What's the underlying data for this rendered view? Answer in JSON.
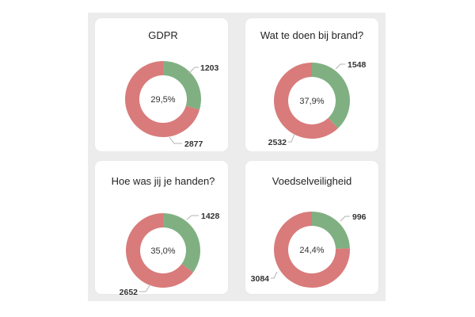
{
  "chart_data": [
    {
      "type": "pie",
      "title": "GDPR",
      "center_label": "29,5%",
      "labels": [
        "1203",
        "2877"
      ],
      "values": [
        1203,
        2877
      ],
      "colors": [
        "#80b082",
        "#d97b7b"
      ]
    },
    {
      "type": "pie",
      "title": "Wat te doen bij brand?",
      "center_label": "37,9%",
      "labels": [
        "1548",
        "2532"
      ],
      "values": [
        1548,
        2532
      ],
      "colors": [
        "#80b082",
        "#d97b7b"
      ]
    },
    {
      "type": "pie",
      "title": "Hoe was jij je handen?",
      "center_label": "35,0%",
      "labels": [
        "1428",
        "2652"
      ],
      "values": [
        1428,
        2652
      ],
      "colors": [
        "#80b082",
        "#d97b7b"
      ]
    },
    {
      "type": "pie",
      "title": "Voedselveiligheid",
      "center_label": "24,4%",
      "labels": [
        "996",
        "3084"
      ],
      "values": [
        996,
        3084
      ],
      "colors": [
        "#80b082",
        "#d97b7b"
      ]
    }
  ]
}
